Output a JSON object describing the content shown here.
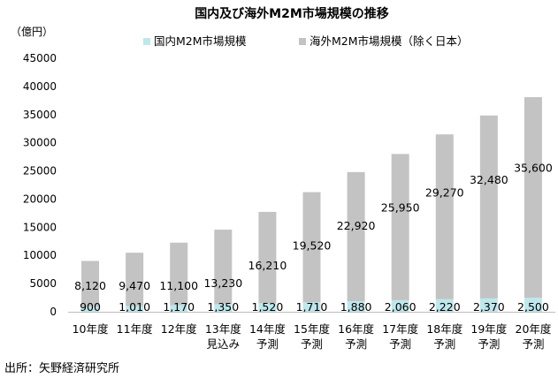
{
  "chart_data": {
    "type": "bar",
    "stacked": true,
    "title": "国内及び海外M2M市場規模の推移",
    "unit_label": "（億円）",
    "source": "出所：矢野経済研究所",
    "categories": [
      [
        "10年度"
      ],
      [
        "11年度"
      ],
      [
        "12年度"
      ],
      [
        "13年度",
        "見込み"
      ],
      [
        "14年度",
        "予測"
      ],
      [
        "15年度",
        "予測"
      ],
      [
        "16年度",
        "予測"
      ],
      [
        "17年度",
        "予測"
      ],
      [
        "18年度",
        "予測"
      ],
      [
        "19年度",
        "予測"
      ],
      [
        "20年度",
        "予測"
      ]
    ],
    "series": [
      {
        "name": "国内M2M市場規模",
        "color": "#bfe7ec",
        "values": [
          900,
          1010,
          1170,
          1350,
          1520,
          1710,
          1880,
          2060,
          2220,
          2370,
          2500
        ],
        "labels": [
          "900",
          "1,010",
          "1,170",
          "1,350",
          "1,520",
          "1,710",
          "1,880",
          "2,060",
          "2,220",
          "2,370",
          "2,500"
        ]
      },
      {
        "name": "海外M2M市場規模（除く日本）",
        "color": "#c3c3c3",
        "values": [
          8120,
          9470,
          11100,
          13230,
          16210,
          19520,
          22920,
          25950,
          29270,
          32480,
          35600
        ],
        "labels": [
          "8,120",
          "9,470",
          "11,100",
          "13,230",
          "16,210",
          "19,520",
          "22,920",
          "25,950",
          "29,270",
          "32,480",
          "35,600"
        ]
      }
    ],
    "ylim": [
      0,
      45000
    ],
    "yticks": [
      0,
      5000,
      10000,
      15000,
      20000,
      25000,
      30000,
      35000,
      40000,
      45000
    ],
    "ytick_labels": [
      "0",
      "5000",
      "10000",
      "15000",
      "20000",
      "25000",
      "30000",
      "35000",
      "40000",
      "45000"
    ],
    "legend_position": "top",
    "grid": false
  }
}
